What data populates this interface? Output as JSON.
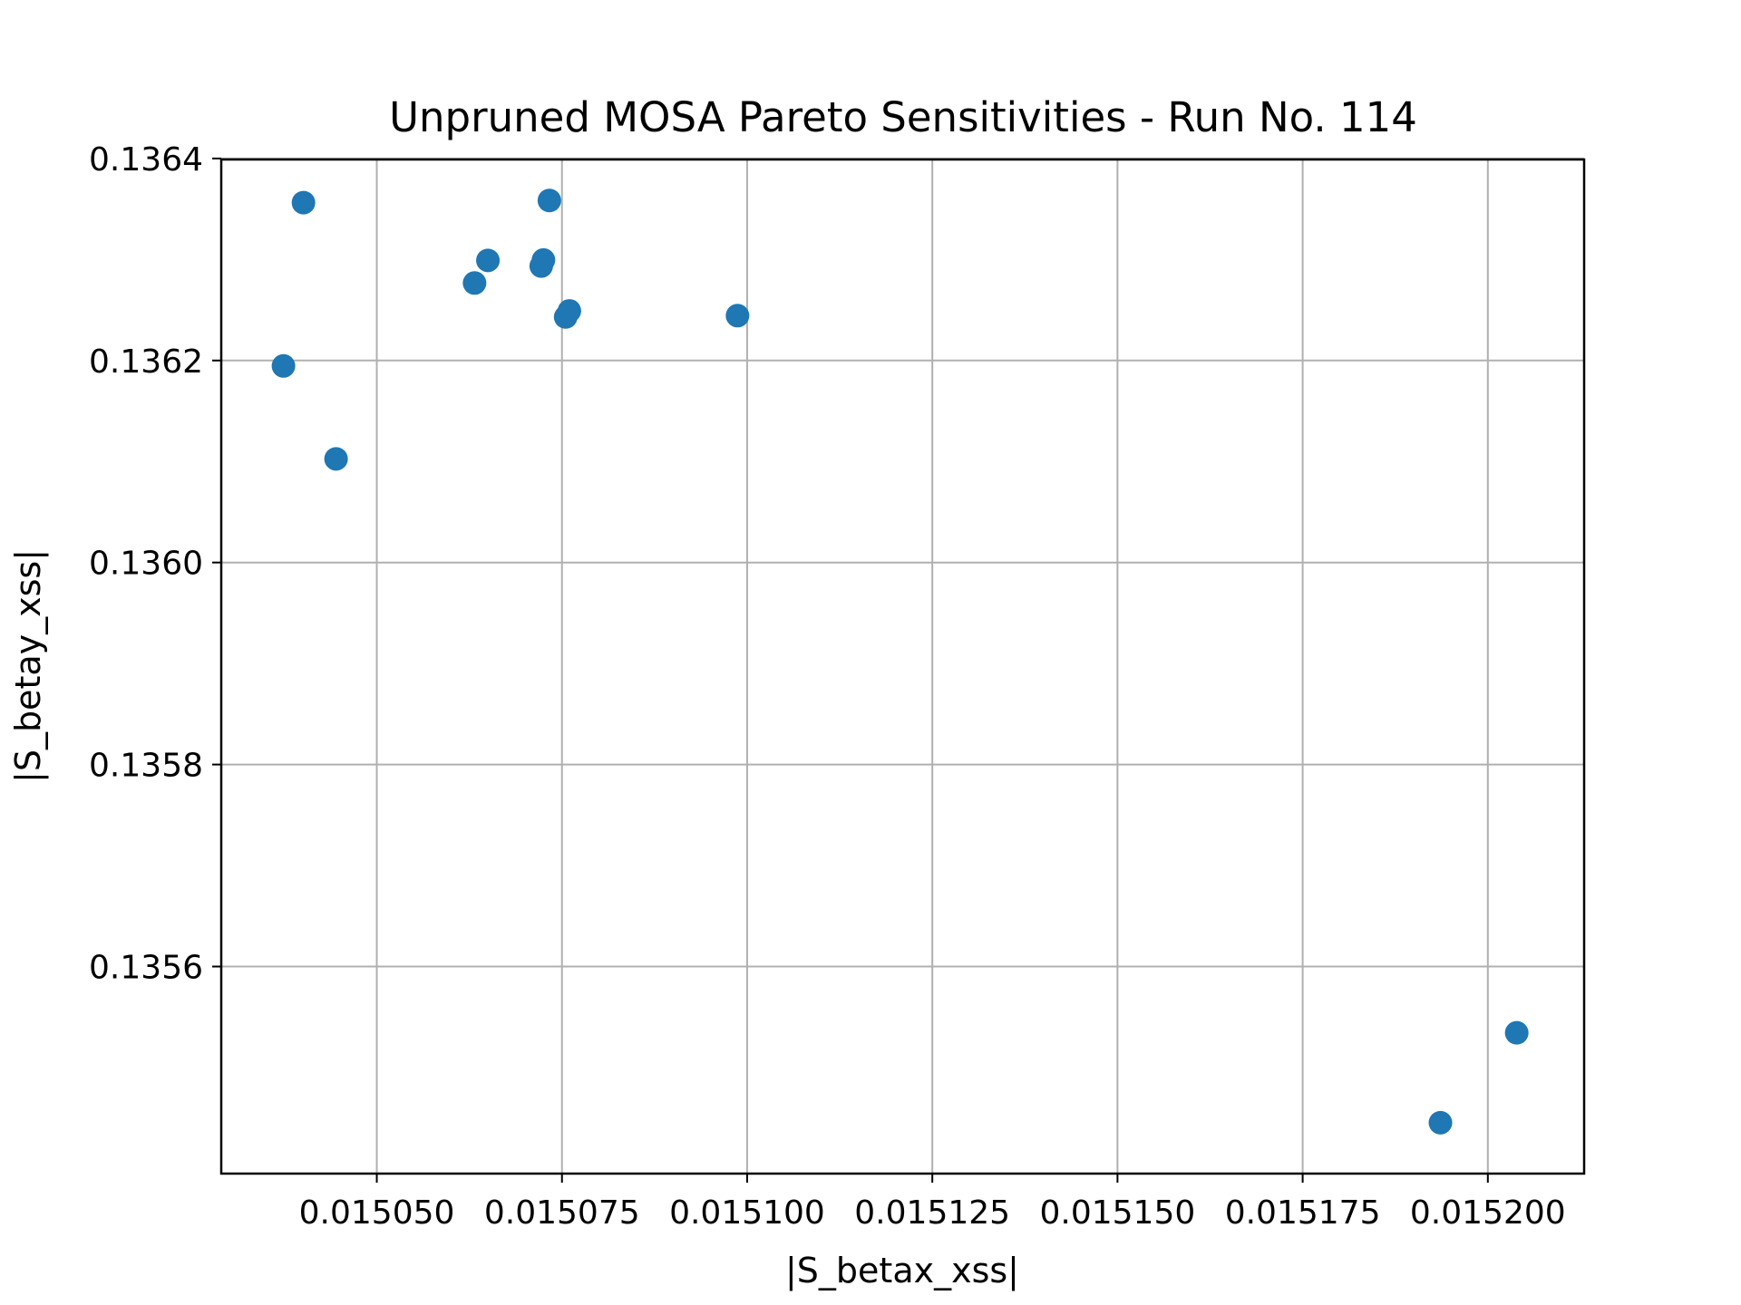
{
  "chart_data": {
    "type": "scatter",
    "title": "Unpruned MOSA Pareto Sensitivities - Run No. 114",
    "xlabel": "|S_betax_xss|",
    "ylabel": "|S_betay_xss|",
    "xlim": [
      0.015029,
      0.015213
    ],
    "ylim": [
      0.135395,
      0.136399
    ],
    "xticks": [
      0.01505,
      0.015075,
      0.0151,
      0.015125,
      0.01515,
      0.015175,
      0.0152
    ],
    "xtick_labels": [
      "0.015050",
      "0.015075",
      "0.015100",
      "0.015125",
      "0.015150",
      "0.015175",
      "0.015200"
    ],
    "yticks": [
      0.1356,
      0.1358,
      0.136,
      0.1362,
      0.1364
    ],
    "ytick_labels": [
      "0.1356",
      "0.1358",
      "0.1360",
      "0.1362",
      "0.1364"
    ],
    "grid": true,
    "marker_color": "#1f77b4",
    "points": [
      {
        "x": 0.0150374,
        "y": 0.1361946
      },
      {
        "x": 0.0150401,
        "y": 0.1363563
      },
      {
        "x": 0.0150445,
        "y": 0.1361026
      },
      {
        "x": 0.0150632,
        "y": 0.1362767
      },
      {
        "x": 0.015065,
        "y": 0.1362991
      },
      {
        "x": 0.0150722,
        "y": 0.1362935
      },
      {
        "x": 0.0150725,
        "y": 0.1362995
      },
      {
        "x": 0.0150733,
        "y": 0.1363584
      },
      {
        "x": 0.0150755,
        "y": 0.1362431
      },
      {
        "x": 0.015076,
        "y": 0.1362491
      },
      {
        "x": 0.0150987,
        "y": 0.1362444
      },
      {
        "x": 0.0151936,
        "y": 0.1354454
      },
      {
        "x": 0.0152039,
        "y": 0.1355344
      }
    ]
  }
}
